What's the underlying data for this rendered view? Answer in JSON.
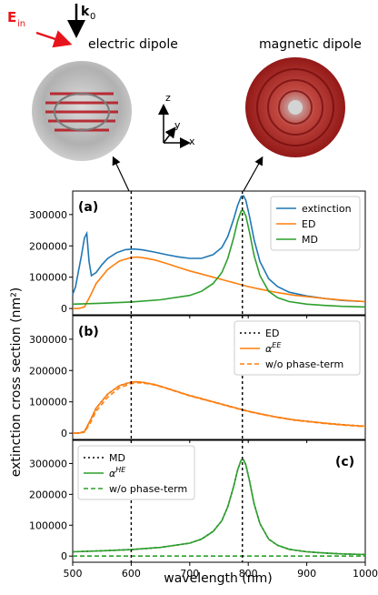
{
  "illustration": {
    "incident_field_label": "E",
    "incident_field_sub": "in",
    "wavevector_label": "k",
    "wavevector_sub": "0",
    "left_title": "electric dipole",
    "right_title": "magnetic dipole",
    "axes": {
      "z": "z",
      "y": "y",
      "x": "x"
    },
    "colors": {
      "field": "#e8141c",
      "sphere": "#9a9a9a",
      "arrows": "#b5121b"
    }
  },
  "markers": {
    "x": [
      600,
      790
    ]
  },
  "colors": {
    "blue": "#1f77b4",
    "orange": "#ff7f0e",
    "green": "#2ca02c",
    "black": "#000000"
  },
  "chart_data": [
    {
      "type": "line",
      "panel_label": "(a)",
      "xlabel": "wavelength (nm)",
      "ylabel": "extinction cross section (nm²)",
      "xlim": [
        500,
        1000
      ],
      "ylim": [
        -20000,
        375000
      ],
      "yticks": [
        0,
        100000,
        200000,
        300000
      ],
      "legend_position": "top-right",
      "series": [
        {
          "name": "extinction",
          "color": "#1f77b4",
          "style": "solid",
          "x": [
            500,
            505,
            510,
            515,
            520,
            524,
            528,
            532,
            540,
            550,
            560,
            575,
            590,
            605,
            620,
            640,
            660,
            680,
            700,
            720,
            740,
            755,
            765,
            775,
            782,
            788,
            792,
            796,
            802,
            810,
            820,
            835,
            850,
            870,
            900,
            930,
            960,
            1000
          ],
          "y": [
            45000,
            70000,
            120000,
            170000,
            225000,
            240000,
            150000,
            105000,
            115000,
            140000,
            160000,
            178000,
            188000,
            190000,
            187000,
            180000,
            172000,
            165000,
            160000,
            160000,
            172000,
            195000,
            230000,
            285000,
            330000,
            358000,
            360000,
            345000,
            295000,
            220000,
            150000,
            95000,
            70000,
            52000,
            40000,
            32000,
            26000,
            22000
          ]
        },
        {
          "name": "ED",
          "color": "#ff7f0e",
          "style": "solid",
          "x": [
            500,
            510,
            520,
            530,
            540,
            560,
            580,
            600,
            610,
            620,
            640,
            660,
            680,
            700,
            720,
            740,
            760,
            780,
            800,
            820,
            850,
            880,
            900,
            930,
            960,
            1000
          ],
          "y": [
            0,
            0,
            5000,
            40000,
            80000,
            125000,
            152000,
            163000,
            164000,
            162000,
            155000,
            144000,
            132000,
            120000,
            110000,
            100000,
            90000,
            80000,
            70000,
            62000,
            51000,
            42000,
            38000,
            32000,
            27000,
            22000
          ]
        },
        {
          "name": "MD",
          "color": "#2ca02c",
          "style": "solid",
          "x": [
            500,
            550,
            600,
            650,
            700,
            720,
            740,
            755,
            765,
            775,
            782,
            788,
            792,
            796,
            802,
            810,
            820,
            835,
            850,
            870,
            900,
            930,
            960,
            1000
          ],
          "y": [
            14000,
            17000,
            21000,
            28000,
            42000,
            55000,
            80000,
            115000,
            160000,
            225000,
            280000,
            312000,
            312000,
            295000,
            245000,
            170000,
            105000,
            55000,
            35000,
            22000,
            14000,
            10000,
            7000,
            5000
          ]
        }
      ]
    },
    {
      "type": "line",
      "panel_label": "(b)",
      "xlim": [
        500,
        1000
      ],
      "ylim": [
        -20000,
        375000
      ],
      "yticks": [
        0,
        100000,
        200000,
        300000
      ],
      "legend_position": "top-right",
      "series": [
        {
          "name": "ED",
          "color": "#000000",
          "style": "dotted",
          "x": [
            500,
            510,
            520,
            530,
            540,
            560,
            580,
            600,
            610,
            620,
            640,
            660,
            680,
            700,
            720,
            740,
            760,
            780,
            800,
            820,
            850,
            880,
            900,
            930,
            960,
            1000
          ],
          "y": [
            0,
            0,
            5000,
            40000,
            80000,
            125000,
            152000,
            163000,
            164000,
            162000,
            155000,
            144000,
            132000,
            120000,
            110000,
            100000,
            90000,
            80000,
            70000,
            62000,
            51000,
            42000,
            38000,
            32000,
            27000,
            22000
          ]
        },
        {
          "name": "α^EE",
          "color": "#ff7f0e",
          "style": "solid",
          "x": [
            500,
            510,
            520,
            530,
            540,
            560,
            580,
            600,
            610,
            620,
            640,
            660,
            680,
            700,
            720,
            740,
            760,
            780,
            800,
            820,
            850,
            880,
            900,
            930,
            960,
            1000
          ],
          "y": [
            0,
            0,
            5000,
            40000,
            80000,
            125000,
            152000,
            163000,
            164000,
            162000,
            155000,
            144000,
            132000,
            120000,
            110000,
            100000,
            90000,
            80000,
            70000,
            62000,
            51000,
            42000,
            38000,
            32000,
            27000,
            22000
          ]
        },
        {
          "name": "w/o phase-term",
          "color": "#ff7f0e",
          "style": "dashed",
          "x": [
            500,
            510,
            520,
            530,
            540,
            560,
            580,
            600,
            610,
            620,
            640,
            660,
            680,
            700,
            720,
            740,
            760,
            780,
            800,
            820,
            850,
            880,
            900,
            930,
            960,
            1000
          ],
          "y": [
            0,
            0,
            3000,
            32000,
            70000,
            115000,
            145000,
            158000,
            161000,
            160000,
            154000,
            143000,
            131000,
            119000,
            109000,
            99000,
            89000,
            79000,
            69000,
            61000,
            50000,
            41000,
            37000,
            31000,
            26000,
            21000
          ]
        }
      ]
    },
    {
      "type": "line",
      "panel_label": "(c)",
      "xlim": [
        500,
        1000
      ],
      "ylim": [
        -20000,
        375000
      ],
      "yticks": [
        0,
        100000,
        200000,
        300000
      ],
      "xticks": [
        500,
        600,
        700,
        800,
        900,
        1000
      ],
      "legend_position": "top-left",
      "series": [
        {
          "name": "MD",
          "color": "#000000",
          "style": "dotted",
          "x": [
            500,
            550,
            600,
            650,
            700,
            720,
            740,
            755,
            765,
            775,
            782,
            788,
            792,
            796,
            802,
            810,
            820,
            835,
            850,
            870,
            900,
            930,
            960,
            1000
          ],
          "y": [
            14000,
            17000,
            21000,
            28000,
            42000,
            55000,
            80000,
            115000,
            160000,
            225000,
            280000,
            312000,
            312000,
            295000,
            245000,
            170000,
            105000,
            55000,
            35000,
            22000,
            14000,
            10000,
            7000,
            5000
          ]
        },
        {
          "name": "α^HE",
          "color": "#2ca02c",
          "style": "solid",
          "x": [
            500,
            550,
            600,
            650,
            700,
            720,
            740,
            755,
            765,
            775,
            782,
            788,
            792,
            796,
            802,
            810,
            820,
            835,
            850,
            870,
            900,
            930,
            960,
            1000
          ],
          "y": [
            14000,
            17000,
            21000,
            28000,
            42000,
            55000,
            80000,
            115000,
            160000,
            225000,
            280000,
            312000,
            312000,
            295000,
            245000,
            170000,
            105000,
            55000,
            35000,
            22000,
            14000,
            10000,
            7000,
            5000
          ]
        },
        {
          "name": "w/o phase-term",
          "color": "#2ca02c",
          "style": "dashed",
          "x": [
            500,
            1000
          ],
          "y": [
            0,
            0
          ]
        }
      ]
    }
  ]
}
